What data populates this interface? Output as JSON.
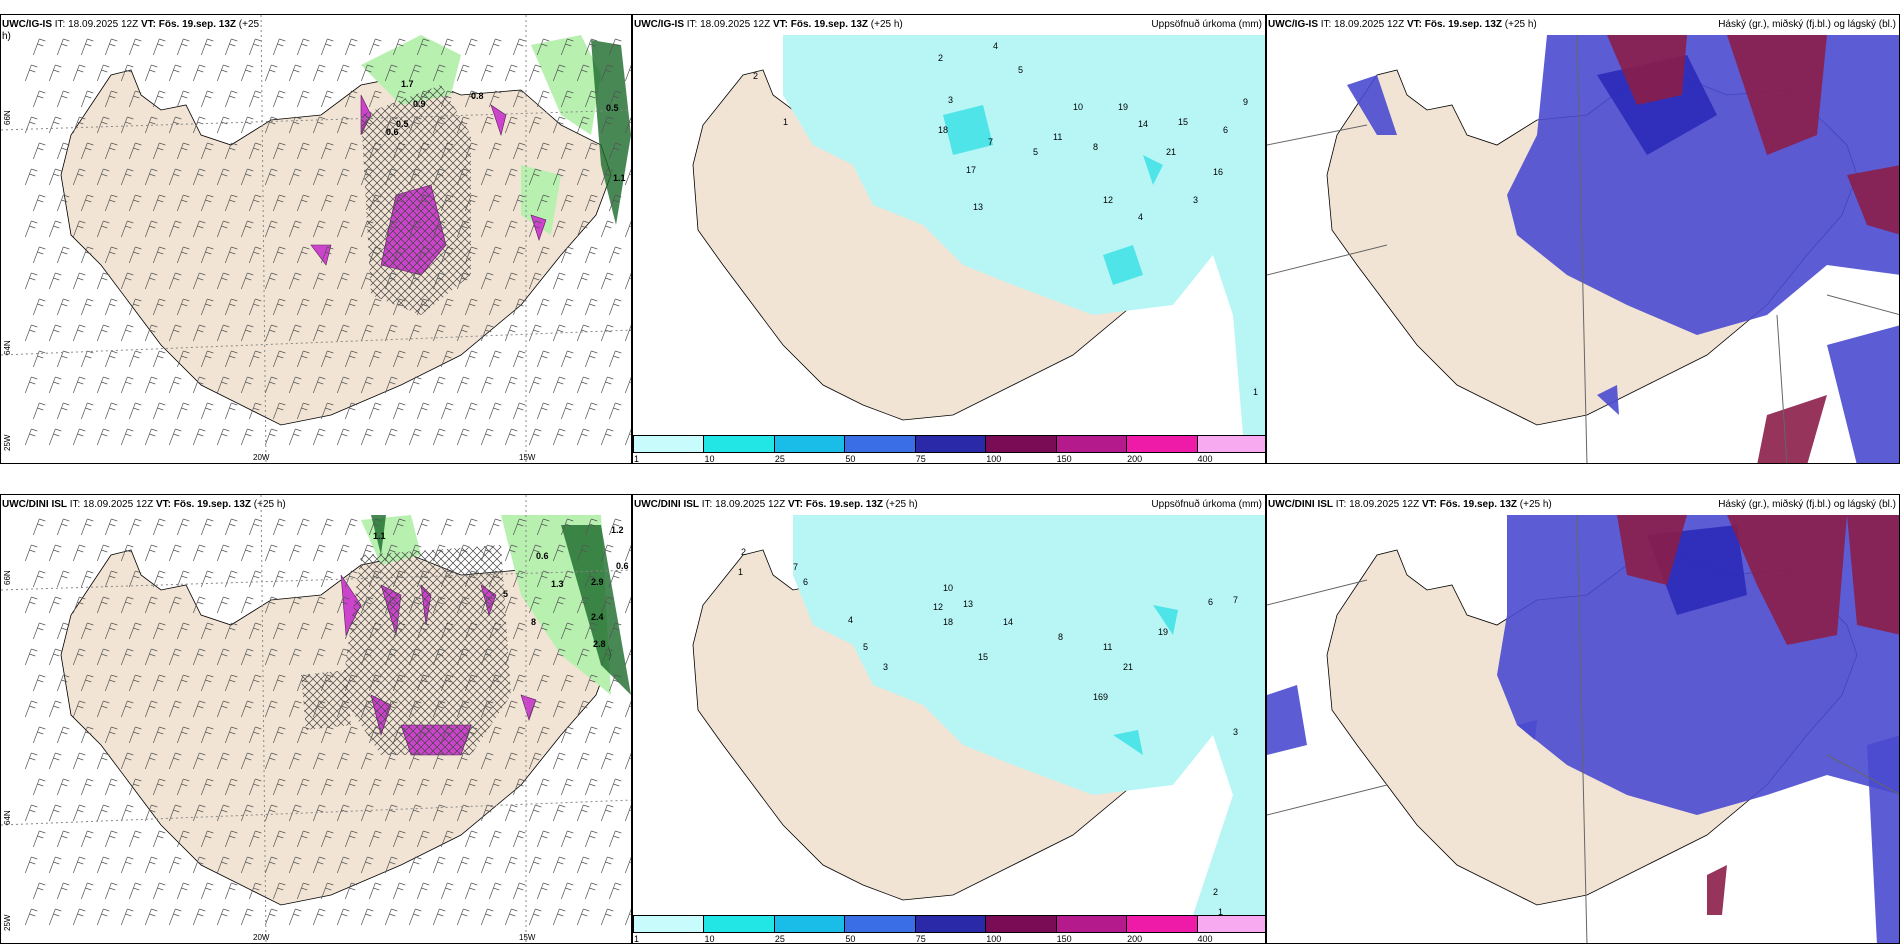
{
  "panels": {
    "top_left": {
      "model": "UWC/IG-IS",
      "it": "IT: 18.09.2025 12Z",
      "vt": "VT: Fös. 19.sep. 13Z",
      "lead": "(+25",
      "lead_wrap": "h)",
      "labels": [
        "1.7",
        "0.9",
        "0.8",
        "0.5",
        "1.1",
        "0.6",
        "0.5"
      ],
      "lon_labels": [
        "20W",
        "15W"
      ],
      "lat_labels": [
        "66N",
        "64N",
        "25W"
      ]
    },
    "top_mid": {
      "model": "UWC/IG-IS",
      "it": "IT: 18.09.2025 12Z",
      "vt": "VT: Fös. 19.sep. 13Z",
      "lead": "(+25 h)",
      "right_title": "Uppsöfnuð úrkoma (mm)",
      "numbers": [
        "2",
        "4",
        "5",
        "3",
        "2",
        "1",
        "7",
        "9",
        "6",
        "5",
        "8",
        "12",
        "14",
        "15",
        "16",
        "10",
        "18",
        "17",
        "13",
        "11",
        "19",
        "21",
        "4",
        "3",
        "1"
      ]
    },
    "top_right": {
      "model": "UWC/IG-IS",
      "it": "IT: 18.09.2025 12Z",
      "vt": "VT: Fös. 19.sep. 13Z",
      "lead": "(+25 h)",
      "right_title": "Háský (gr.), miðský (fj.bl.) og lágský (bl.)"
    },
    "bottom_left": {
      "model": "UWC/DINI ISL",
      "it": "IT: 18.09.2025 12Z",
      "vt": "VT: Fös. 19.sep. 13Z",
      "lead": "(+25 h)",
      "labels": [
        "1.1",
        "0.6",
        "1.3",
        "2.9",
        "1.2",
        "0.6",
        "2.4",
        "2.8",
        "5",
        "8"
      ],
      "lon_labels": [
        "20W",
        "15W"
      ],
      "lat_labels": [
        "66N",
        "64N",
        "25W"
      ]
    },
    "bottom_mid": {
      "model": "UWC/DINI ISL",
      "it": "IT: 18.09.2025 12Z",
      "vt": "VT: Fös. 19.sep. 13Z",
      "lead": "(+25 h)",
      "right_title": "Uppsöfnuð úrkoma (mm)",
      "numbers": [
        "2",
        "1",
        "7",
        "6",
        "4",
        "5",
        "3",
        "12",
        "13",
        "10",
        "14",
        "18",
        "8",
        "9",
        "11",
        "15",
        "19",
        "21",
        "16",
        "6",
        "7",
        "3",
        "2",
        "1"
      ]
    },
    "bottom_right": {
      "model": "UWC/DINI ISL",
      "it": "IT: 18.09.2025 12Z",
      "vt": "VT: Fös. 19.sep. 13Z",
      "lead": "(+25 h)",
      "right_title": "Háský (gr.), miðský (fj.bl.) og lágský (bl.)"
    }
  },
  "colorbar": {
    "labels": [
      "1",
      "10",
      "25",
      "50",
      "75",
      "100",
      "150",
      "200",
      "400"
    ],
    "colors": [
      "#c8fbfb",
      "#22e6e6",
      "#19bde8",
      "#3a6ee6",
      "#2a2aa8",
      "#7a0c55",
      "#b41a8c",
      "#ee1aa8",
      "#f7aaf0"
    ]
  },
  "colors": {
    "land": "#f2e4d4",
    "precip_light": "#b8f6f6",
    "precip_medium": "#4ee4e8",
    "cloud_low": "#4a4ad0",
    "cloud_mid": "#2a2ab8",
    "cloud_high": "#8b1e4a",
    "green_light": "#b8f0b0",
    "green_dark": "#1a6a2a",
    "magenta": "#cc44cc"
  }
}
